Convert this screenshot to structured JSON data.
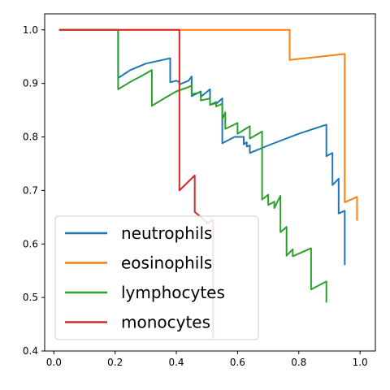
{
  "chart_data": {
    "type": "line",
    "xlim": [
      -0.03,
      1.05
    ],
    "ylim": [
      0.4,
      1.03
    ],
    "xticks": [
      0.0,
      0.2,
      0.4,
      0.6,
      0.8,
      1.0
    ],
    "xtick_labels": [
      "0.0",
      "0.2",
      "0.4",
      "0.6",
      "0.8",
      "1.0"
    ],
    "yticks": [
      0.4,
      0.5,
      0.6,
      0.7,
      0.8,
      0.9,
      1.0
    ],
    "ytick_labels": [
      "0.4",
      "0.5",
      "0.6",
      "0.7",
      "0.8",
      "0.9",
      "1.0"
    ],
    "grid": false,
    "legend_position": "lower-left",
    "series": [
      {
        "name": "neutrophils",
        "color": "#1f77b4",
        "points": [
          [
            0.02,
            1.0
          ],
          [
            0.21,
            1.0
          ],
          [
            0.21,
            0.91
          ],
          [
            0.25,
            0.925
          ],
          [
            0.3,
            0.937
          ],
          [
            0.38,
            0.947
          ],
          [
            0.38,
            0.902
          ],
          [
            0.4,
            0.905
          ],
          [
            0.41,
            0.902
          ],
          [
            0.41,
            0.898
          ],
          [
            0.44,
            0.905
          ],
          [
            0.45,
            0.913
          ],
          [
            0.45,
            0.876
          ],
          [
            0.48,
            0.885
          ],
          [
            0.48,
            0.875
          ],
          [
            0.51,
            0.889
          ],
          [
            0.51,
            0.86
          ],
          [
            0.53,
            0.865
          ],
          [
            0.53,
            0.862
          ],
          [
            0.55,
            0.872
          ],
          [
            0.55,
            0.788
          ],
          [
            0.59,
            0.8
          ],
          [
            0.62,
            0.8
          ],
          [
            0.62,
            0.786
          ],
          [
            0.63,
            0.79
          ],
          [
            0.63,
            0.782
          ],
          [
            0.64,
            0.784
          ],
          [
            0.64,
            0.77
          ],
          [
            0.7,
            0.784
          ],
          [
            0.8,
            0.806
          ],
          [
            0.89,
            0.823
          ],
          [
            0.89,
            0.764
          ],
          [
            0.91,
            0.77
          ],
          [
            0.91,
            0.71
          ],
          [
            0.93,
            0.722
          ],
          [
            0.93,
            0.657
          ],
          [
            0.95,
            0.662
          ],
          [
            0.95,
            0.562
          ]
        ]
      },
      {
        "name": "eosinophils",
        "color": "#ff7f0e",
        "points": [
          [
            0.02,
            1.0
          ],
          [
            0.77,
            1.0
          ],
          [
            0.77,
            0.944
          ],
          [
            0.82,
            0.947
          ],
          [
            0.95,
            0.955
          ],
          [
            0.95,
            0.678
          ],
          [
            0.99,
            0.688
          ],
          [
            0.99,
            0.645
          ]
        ]
      },
      {
        "name": "lymphocytes",
        "color": "#2ca02c",
        "points": [
          [
            0.02,
            1.0
          ],
          [
            0.21,
            1.0
          ],
          [
            0.21,
            0.889
          ],
          [
            0.25,
            0.903
          ],
          [
            0.29,
            0.915
          ],
          [
            0.32,
            0.925
          ],
          [
            0.32,
            0.858
          ],
          [
            0.36,
            0.872
          ],
          [
            0.4,
            0.885
          ],
          [
            0.44,
            0.893
          ],
          [
            0.45,
            0.896
          ],
          [
            0.45,
            0.88
          ],
          [
            0.48,
            0.883
          ],
          [
            0.48,
            0.868
          ],
          [
            0.51,
            0.872
          ],
          [
            0.51,
            0.86
          ],
          [
            0.53,
            0.863
          ],
          [
            0.53,
            0.857
          ],
          [
            0.55,
            0.862
          ],
          [
            0.55,
            0.833
          ],
          [
            0.56,
            0.846
          ],
          [
            0.56,
            0.815
          ],
          [
            0.6,
            0.826
          ],
          [
            0.6,
            0.806
          ],
          [
            0.64,
            0.82
          ],
          [
            0.64,
            0.797
          ],
          [
            0.68,
            0.81
          ],
          [
            0.68,
            0.683
          ],
          [
            0.7,
            0.692
          ],
          [
            0.7,
            0.673
          ],
          [
            0.72,
            0.679
          ],
          [
            0.72,
            0.667
          ],
          [
            0.74,
            0.69
          ],
          [
            0.74,
            0.622
          ],
          [
            0.76,
            0.632
          ],
          [
            0.76,
            0.578
          ],
          [
            0.78,
            0.59
          ],
          [
            0.78,
            0.577
          ],
          [
            0.84,
            0.592
          ],
          [
            0.84,
            0.515
          ],
          [
            0.89,
            0.53
          ],
          [
            0.89,
            0.492
          ]
        ]
      },
      {
        "name": "monocytes",
        "color": "#d62728",
        "points": [
          [
            0.02,
            1.0
          ],
          [
            0.41,
            1.0
          ],
          [
            0.41,
            0.7
          ],
          [
            0.46,
            0.728
          ],
          [
            0.46,
            0.66
          ],
          [
            0.5,
            0.64
          ],
          [
            0.5,
            0.638
          ],
          [
            0.52,
            0.645
          ],
          [
            0.52,
            0.425
          ]
        ]
      }
    ]
  }
}
